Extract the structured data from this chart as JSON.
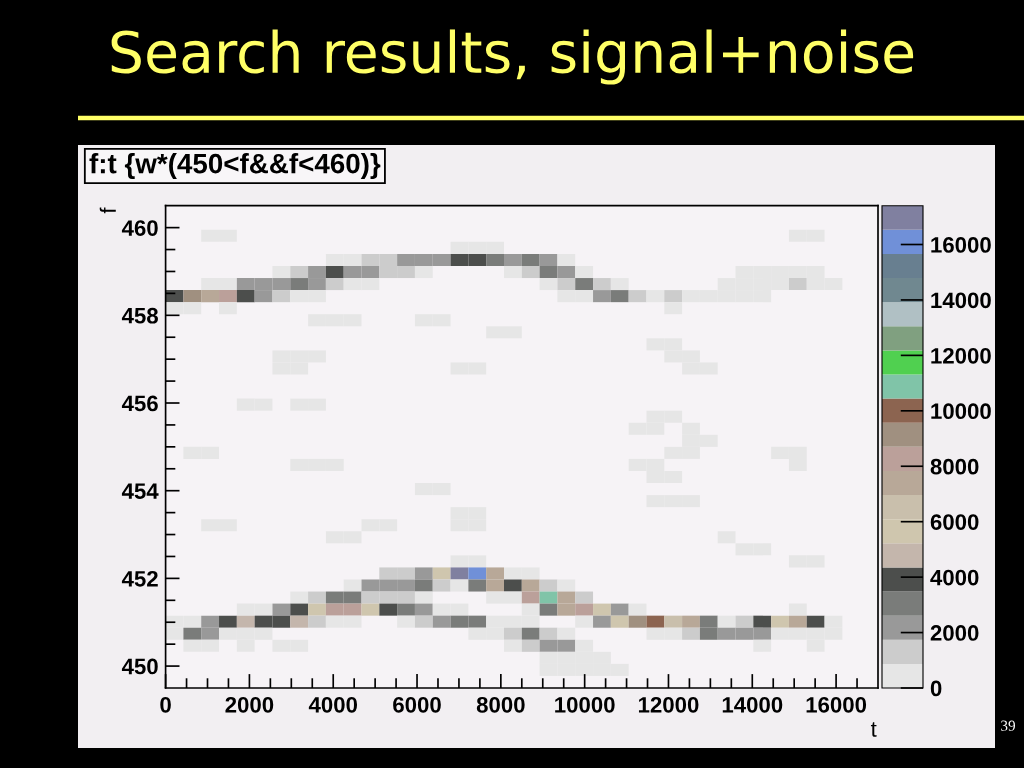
{
  "chart_data": {
    "type": "heatmap",
    "title": "Search results, signal+noise",
    "subtitle": "f:t {w*(450<f&&f<460)}",
    "xlabel": "t",
    "ylabel": "f",
    "annotations": [
      "39"
    ],
    "xlim": [
      0,
      17000
    ],
    "ylim": [
      449.5,
      460.5
    ],
    "xticks": [
      0,
      {
        "value": 500,
        "label": null
      },
      {
        "value": 1000,
        "label": null
      },
      {
        "value": 1500,
        "label": null
      },
      2000,
      {
        "value": 2500,
        "label": null
      },
      {
        "value": 3000,
        "label": null
      },
      {
        "value": 3500,
        "label": null
      },
      4000,
      {
        "value": 4500,
        "label": null
      },
      {
        "value": 5000,
        "label": null
      },
      {
        "value": 5500,
        "label": null
      },
      6000,
      {
        "value": 6500,
        "label": null
      },
      {
        "value": 7000,
        "label": null
      },
      {
        "value": 7500,
        "label": null
      },
      8000,
      {
        "value": 8500,
        "label": null
      },
      {
        "value": 9000,
        "label": null
      },
      {
        "value": 9500,
        "label": null
      },
      10000,
      {
        "value": 10500,
        "label": null
      },
      {
        "value": 11000,
        "label": null
      },
      {
        "value": 11500,
        "label": null
      },
      12000,
      {
        "value": 12500,
        "label": null
      },
      {
        "value": 13000,
        "label": null
      },
      {
        "value": 13500,
        "label": null
      },
      14000,
      {
        "value": 14500,
        "label": null
      },
      {
        "value": 15000,
        "label": null
      },
      {
        "value": 15500,
        "label": null
      },
      16000,
      {
        "value": 16500,
        "label": null
      }
    ],
    "yticks": [
      450,
      {
        "value": 450.5,
        "label": null
      },
      {
        "value": 451,
        "label": null
      },
      {
        "value": 451.5,
        "label": null
      },
      452,
      {
        "value": 452.5,
        "label": null
      },
      {
        "value": 453,
        "label": null
      },
      {
        "value": 453.5,
        "label": null
      },
      454,
      {
        "value": 454.5,
        "label": null
      },
      {
        "value": 455,
        "label": null
      },
      {
        "value": 455.5,
        "label": null
      },
      456,
      {
        "value": 456.5,
        "label": null
      },
      {
        "value": 457,
        "label": null
      },
      {
        "value": 457.5,
        "label": null
      },
      458,
      {
        "value": 458.5,
        "label": null
      },
      {
        "value": 459,
        "label": null
      },
      {
        "value": 459.5,
        "label": null
      },
      460
    ],
    "clim": [
      0,
      17400
    ],
    "cticks": [
      0,
      2000,
      4000,
      6000,
      8000,
      10000,
      12000,
      14000,
      16000
    ],
    "colors": [
      "#e6e6e6",
      "#cccccc",
      "#999999",
      "#7a7c7a",
      "#4c4e4c",
      "#c4b6ac",
      "#cfc6ae",
      "#c9bfac",
      "#b8a898",
      "#bba09a",
      "#a09080",
      "#8c6450",
      "#80c4a8",
      "#50d050",
      "#80a080",
      "#b0c0c4",
      "#708890",
      "#687f90",
      "#7090d8",
      "#8080a0"
    ],
    "cells": [
      [
        0,
        0,
        0,
        0,
        0,
        0,
        0,
        0,
        0,
        0,
        0,
        0,
        0,
        0,
        0,
        0,
        0,
        0,
        0,
        0,
        0,
        0,
        0,
        0,
        0,
        0,
        0,
        0,
        0,
        0,
        0,
        0,
        0,
        0,
        0,
        0,
        0,
        0,
        0,
        0
      ],
      [
        0,
        0,
        0,
        0,
        0,
        0,
        0,
        0,
        0,
        0,
        0,
        0,
        0,
        0,
        0,
        0,
        0,
        0,
        0,
        0,
        0,
        0,
        0,
        0,
        0,
        0,
        0,
        0,
        0,
        0,
        0,
        0,
        0,
        0,
        0,
        0,
        0,
        0,
        0,
        0
      ],
      [
        0,
        0,
        400,
        400,
        0,
        0,
        0,
        0,
        0,
        0,
        0,
        0,
        0,
        0,
        0,
        0,
        0,
        0,
        0,
        0,
        0,
        0,
        0,
        0,
        0,
        0,
        0,
        0,
        0,
        0,
        0,
        0,
        0,
        0,
        0,
        400,
        400,
        0,
        0,
        0
      ],
      [
        0,
        0,
        0,
        0,
        0,
        0,
        0,
        0,
        0,
        0,
        0,
        0,
        0,
        0,
        0,
        0,
        400,
        400,
        400,
        0,
        0,
        0,
        0,
        0,
        0,
        0,
        0,
        0,
        0,
        0,
        0,
        0,
        0,
        0,
        0,
        0,
        0,
        0,
        0,
        0
      ],
      [
        0,
        0,
        0,
        0,
        0,
        0,
        0,
        0,
        0,
        400,
        400,
        1300,
        1300,
        2200,
        2200,
        2200,
        3900,
        3900,
        3000,
        2200,
        3000,
        2200,
        400,
        0,
        0,
        0,
        0,
        0,
        0,
        0,
        0,
        0,
        0,
        0,
        0,
        0,
        0,
        0,
        0,
        0
      ],
      [
        0,
        0,
        0,
        0,
        0,
        0,
        400,
        1300,
        2200,
        3900,
        2200,
        2200,
        1300,
        1300,
        400,
        0,
        0,
        0,
        0,
        400,
        1300,
        3000,
        2200,
        400,
        0,
        0,
        0,
        0,
        0,
        0,
        0,
        0,
        400,
        400,
        400,
        400,
        400,
        0,
        0,
        0
      ],
      [
        0,
        0,
        400,
        400,
        2200,
        2200,
        2200,
        3000,
        2200,
        1300,
        400,
        400,
        0,
        0,
        0,
        0,
        0,
        0,
        0,
        0,
        0,
        400,
        1300,
        3000,
        1300,
        400,
        0,
        0,
        0,
        0,
        0,
        400,
        400,
        400,
        400,
        1300,
        400,
        400,
        0,
        0
      ],
      [
        3900,
        9100,
        7400,
        8300,
        3900,
        2200,
        1300,
        400,
        400,
        0,
        0,
        0,
        0,
        0,
        0,
        0,
        0,
        0,
        0,
        0,
        0,
        0,
        400,
        400,
        2200,
        3000,
        1300,
        400,
        1300,
        400,
        400,
        400,
        400,
        400,
        0,
        0,
        0,
        0,
        0,
        0
      ],
      [
        400,
        400,
        0,
        400,
        0,
        0,
        0,
        0,
        0,
        0,
        0,
        0,
        0,
        0,
        0,
        0,
        0,
        0,
        0,
        0,
        0,
        0,
        0,
        0,
        0,
        0,
        0,
        0,
        400,
        0,
        0,
        0,
        0,
        0,
        0,
        0,
        0,
        0,
        0,
        0
      ],
      [
        0,
        0,
        0,
        0,
        0,
        0,
        0,
        0,
        400,
        400,
        400,
        0,
        0,
        0,
        400,
        400,
        0,
        0,
        0,
        0,
        0,
        0,
        0,
        0,
        0,
        0,
        0,
        0,
        0,
        0,
        0,
        0,
        0,
        0,
        0,
        0,
        0,
        0,
        0,
        0
      ],
      [
        0,
        0,
        0,
        0,
        0,
        0,
        0,
        0,
        0,
        0,
        0,
        0,
        0,
        0,
        0,
        0,
        0,
        0,
        400,
        400,
        0,
        0,
        0,
        0,
        0,
        0,
        0,
        0,
        0,
        0,
        0,
        0,
        0,
        0,
        0,
        0,
        0,
        0,
        0,
        0
      ],
      [
        0,
        0,
        0,
        0,
        0,
        0,
        0,
        0,
        0,
        0,
        0,
        0,
        0,
        0,
        0,
        0,
        0,
        0,
        0,
        0,
        0,
        0,
        0,
        0,
        0,
        0,
        0,
        400,
        400,
        0,
        0,
        0,
        0,
        0,
        0,
        0,
        0,
        0,
        0,
        0
      ],
      [
        0,
        0,
        0,
        0,
        0,
        0,
        400,
        400,
        400,
        0,
        0,
        0,
        0,
        0,
        0,
        0,
        0,
        0,
        0,
        0,
        0,
        0,
        0,
        0,
        0,
        0,
        0,
        0,
        400,
        400,
        0,
        0,
        0,
        0,
        0,
        0,
        0,
        0,
        0,
        0
      ],
      [
        0,
        0,
        0,
        0,
        0,
        0,
        400,
        400,
        0,
        0,
        0,
        0,
        0,
        0,
        0,
        0,
        400,
        400,
        0,
        0,
        0,
        0,
        0,
        0,
        0,
        0,
        0,
        0,
        0,
        400,
        400,
        0,
        0,
        0,
        0,
        0,
        0,
        0,
        0,
        0
      ],
      [
        0,
        0,
        0,
        0,
        0,
        0,
        0,
        0,
        0,
        0,
        0,
        0,
        0,
        0,
        0,
        0,
        0,
        0,
        0,
        0,
        0,
        0,
        0,
        0,
        0,
        0,
        0,
        0,
        0,
        0,
        0,
        0,
        0,
        0,
        0,
        0,
        0,
        0,
        0,
        0
      ],
      [
        0,
        0,
        0,
        0,
        0,
        0,
        0,
        0,
        0,
        0,
        0,
        0,
        0,
        0,
        0,
        0,
        0,
        0,
        0,
        0,
        0,
        0,
        0,
        0,
        0,
        0,
        0,
        0,
        0,
        0,
        0,
        0,
        0,
        0,
        0,
        0,
        0,
        0,
        0,
        0
      ],
      [
        0,
        0,
        0,
        0,
        400,
        400,
        0,
        400,
        400,
        0,
        0,
        0,
        0,
        0,
        0,
        0,
        0,
        0,
        0,
        0,
        0,
        0,
        0,
        0,
        0,
        0,
        0,
        0,
        0,
        0,
        0,
        0,
        0,
        0,
        0,
        0,
        0,
        0,
        0,
        0
      ],
      [
        0,
        0,
        0,
        0,
        0,
        0,
        0,
        0,
        0,
        0,
        0,
        0,
        0,
        0,
        0,
        0,
        0,
        0,
        0,
        0,
        0,
        0,
        0,
        0,
        0,
        0,
        0,
        400,
        400,
        0,
        0,
        0,
        0,
        0,
        0,
        0,
        0,
        0,
        0,
        0
      ],
      [
        0,
        0,
        0,
        0,
        0,
        0,
        0,
        0,
        0,
        0,
        0,
        0,
        0,
        0,
        0,
        0,
        0,
        0,
        0,
        0,
        0,
        0,
        0,
        0,
        0,
        0,
        400,
        400,
        0,
        400,
        0,
        0,
        0,
        0,
        0,
        0,
        0,
        0,
        0,
        0
      ],
      [
        0,
        0,
        0,
        0,
        0,
        0,
        0,
        0,
        0,
        0,
        0,
        0,
        0,
        0,
        0,
        0,
        0,
        0,
        0,
        0,
        0,
        0,
        0,
        0,
        0,
        0,
        0,
        0,
        0,
        400,
        400,
        0,
        0,
        0,
        0,
        0,
        0,
        0,
        0,
        0
      ],
      [
        0,
        400,
        400,
        0,
        0,
        0,
        0,
        0,
        0,
        0,
        0,
        0,
        0,
        0,
        0,
        0,
        0,
        0,
        0,
        0,
        0,
        0,
        0,
        0,
        0,
        0,
        0,
        0,
        400,
        400,
        0,
        0,
        0,
        0,
        400,
        400,
        0,
        0,
        0,
        0
      ],
      [
        0,
        0,
        0,
        0,
        0,
        0,
        0,
        400,
        400,
        400,
        0,
        0,
        0,
        0,
        0,
        0,
        0,
        0,
        0,
        0,
        0,
        0,
        0,
        0,
        0,
        0,
        400,
        400,
        0,
        0,
        0,
        0,
        0,
        0,
        0,
        400,
        0,
        0,
        0,
        0
      ],
      [
        0,
        0,
        0,
        0,
        0,
        0,
        0,
        0,
        0,
        0,
        0,
        0,
        0,
        0,
        0,
        0,
        0,
        0,
        0,
        0,
        0,
        0,
        0,
        0,
        0,
        0,
        0,
        400,
        400,
        0,
        0,
        0,
        0,
        0,
        0,
        0,
        0,
        0,
        0,
        0
      ],
      [
        0,
        0,
        0,
        0,
        0,
        0,
        0,
        0,
        0,
        0,
        0,
        0,
        0,
        0,
        400,
        400,
        0,
        0,
        0,
        0,
        0,
        0,
        0,
        0,
        0,
        0,
        0,
        0,
        0,
        0,
        0,
        0,
        0,
        0,
        0,
        0,
        0,
        0,
        0,
        0
      ],
      [
        0,
        0,
        0,
        0,
        0,
        0,
        0,
        0,
        0,
        0,
        0,
        0,
        0,
        0,
        0,
        0,
        0,
        0,
        0,
        0,
        0,
        0,
        0,
        0,
        0,
        0,
        0,
        400,
        400,
        400,
        0,
        0,
        0,
        0,
        0,
        0,
        0,
        0,
        0,
        0
      ],
      [
        0,
        0,
        0,
        0,
        0,
        0,
        0,
        0,
        0,
        0,
        0,
        0,
        0,
        0,
        0,
        0,
        400,
        400,
        0,
        0,
        0,
        0,
        0,
        0,
        0,
        0,
        0,
        0,
        0,
        0,
        0,
        0,
        0,
        0,
        0,
        0,
        0,
        0,
        0,
        0
      ],
      [
        0,
        0,
        400,
        400,
        0,
        0,
        0,
        0,
        0,
        0,
        0,
        400,
        400,
        0,
        0,
        0,
        400,
        400,
        0,
        0,
        0,
        0,
        0,
        0,
        0,
        0,
        0,
        0,
        0,
        0,
        0,
        0,
        0,
        0,
        0,
        0,
        0,
        0,
        0,
        0
      ],
      [
        0,
        0,
        0,
        0,
        0,
        0,
        0,
        0,
        0,
        400,
        400,
        0,
        0,
        0,
        0,
        0,
        0,
        0,
        0,
        0,
        0,
        0,
        0,
        0,
        0,
        0,
        0,
        0,
        0,
        0,
        0,
        400,
        0,
        0,
        0,
        0,
        0,
        0,
        0,
        0
      ],
      [
        0,
        0,
        0,
        0,
        0,
        0,
        0,
        0,
        0,
        0,
        0,
        0,
        0,
        0,
        0,
        0,
        0,
        0,
        0,
        0,
        0,
        0,
        0,
        0,
        0,
        0,
        0,
        0,
        0,
        0,
        0,
        0,
        400,
        400,
        0,
        0,
        0,
        0,
        0,
        0
      ],
      [
        0,
        0,
        0,
        0,
        0,
        0,
        0,
        0,
        0,
        0,
        0,
        0,
        0,
        0,
        0,
        0,
        400,
        400,
        0,
        0,
        0,
        0,
        0,
        0,
        0,
        0,
        0,
        0,
        0,
        0,
        0,
        0,
        0,
        0,
        0,
        400,
        400,
        0,
        0,
        0
      ],
      [
        0,
        0,
        0,
        0,
        0,
        0,
        0,
        0,
        0,
        0,
        0,
        0,
        1300,
        1300,
        2200,
        5700,
        17000,
        16100,
        7400,
        400,
        400,
        0,
        0,
        0,
        0,
        0,
        0,
        0,
        0,
        0,
        0,
        0,
        0,
        0,
        0,
        0,
        0,
        0,
        0,
        0
      ],
      [
        0,
        0,
        0,
        0,
        0,
        0,
        0,
        0,
        0,
        0,
        400,
        2200,
        2200,
        2200,
        3000,
        1300,
        400,
        3000,
        7400,
        3900,
        7400,
        1300,
        400,
        0,
        0,
        0,
        0,
        0,
        0,
        0,
        0,
        0,
        0,
        0,
        0,
        0,
        0,
        0,
        0,
        0
      ],
      [
        0,
        0,
        0,
        0,
        0,
        0,
        0,
        400,
        1300,
        3000,
        3000,
        1300,
        1300,
        1300,
        400,
        0,
        0,
        0,
        400,
        400,
        8300,
        10900,
        7400,
        1300,
        0,
        0,
        0,
        0,
        0,
        0,
        0,
        0,
        0,
        0,
        0,
        0,
        0,
        0,
        0,
        0
      ],
      [
        0,
        0,
        0,
        0,
        400,
        400,
        2200,
        3900,
        5700,
        8300,
        8300,
        5700,
        3900,
        3000,
        2200,
        400,
        400,
        0,
        0,
        0,
        400,
        3000,
        7400,
        8300,
        5700,
        2200,
        400,
        0,
        0,
        0,
        0,
        0,
        0,
        0,
        0,
        400,
        0,
        0,
        0,
        0
      ],
      [
        400,
        400,
        2200,
        3900,
        4800,
        3900,
        3900,
        4800,
        1300,
        400,
        400,
        0,
        0,
        400,
        1300,
        2200,
        3000,
        3000,
        400,
        400,
        400,
        0,
        0,
        400,
        2200,
        5700,
        9100,
        10000,
        6500,
        7400,
        3000,
        400,
        1300,
        3900,
        5700,
        7400,
        3900,
        400,
        0,
        0
      ],
      [
        400,
        3000,
        2200,
        400,
        400,
        400,
        0,
        0,
        0,
        0,
        0,
        0,
        0,
        0,
        0,
        0,
        0,
        400,
        400,
        1300,
        3000,
        1300,
        400,
        0,
        0,
        0,
        0,
        400,
        400,
        1300,
        3000,
        2200,
        2200,
        2200,
        400,
        400,
        400,
        400,
        0,
        0
      ],
      [
        0,
        400,
        400,
        0,
        400,
        0,
        400,
        400,
        0,
        0,
        0,
        0,
        0,
        0,
        0,
        0,
        0,
        0,
        0,
        400,
        1300,
        2200,
        2200,
        400,
        0,
        0,
        0,
        0,
        0,
        0,
        0,
        0,
        0,
        400,
        0,
        0,
        400,
        0,
        0,
        0
      ],
      [
        0,
        0,
        0,
        0,
        0,
        0,
        0,
        0,
        0,
        0,
        0,
        0,
        0,
        0,
        0,
        0,
        0,
        0,
        0,
        0,
        0,
        400,
        400,
        400,
        400,
        0,
        0,
        0,
        0,
        0,
        0,
        0,
        0,
        0,
        0,
        0,
        0,
        0,
        0,
        0
      ],
      [
        0,
        0,
        0,
        0,
        0,
        0,
        0,
        0,
        0,
        0,
        0,
        0,
        0,
        0,
        0,
        0,
        0,
        0,
        0,
        0,
        0,
        400,
        400,
        400,
        400,
        400,
        0,
        0,
        0,
        0,
        0,
        0,
        0,
        0,
        0,
        0,
        0,
        0,
        0,
        0
      ],
      [
        0,
        0,
        0,
        0,
        0,
        0,
        0,
        0,
        0,
        0,
        0,
        0,
        0,
        0,
        0,
        0,
        0,
        0,
        0,
        0,
        0,
        0,
        0,
        0,
        0,
        0,
        0,
        0,
        0,
        0,
        0,
        0,
        0,
        0,
        0,
        0,
        0,
        0,
        0,
        0
      ]
    ]
  }
}
